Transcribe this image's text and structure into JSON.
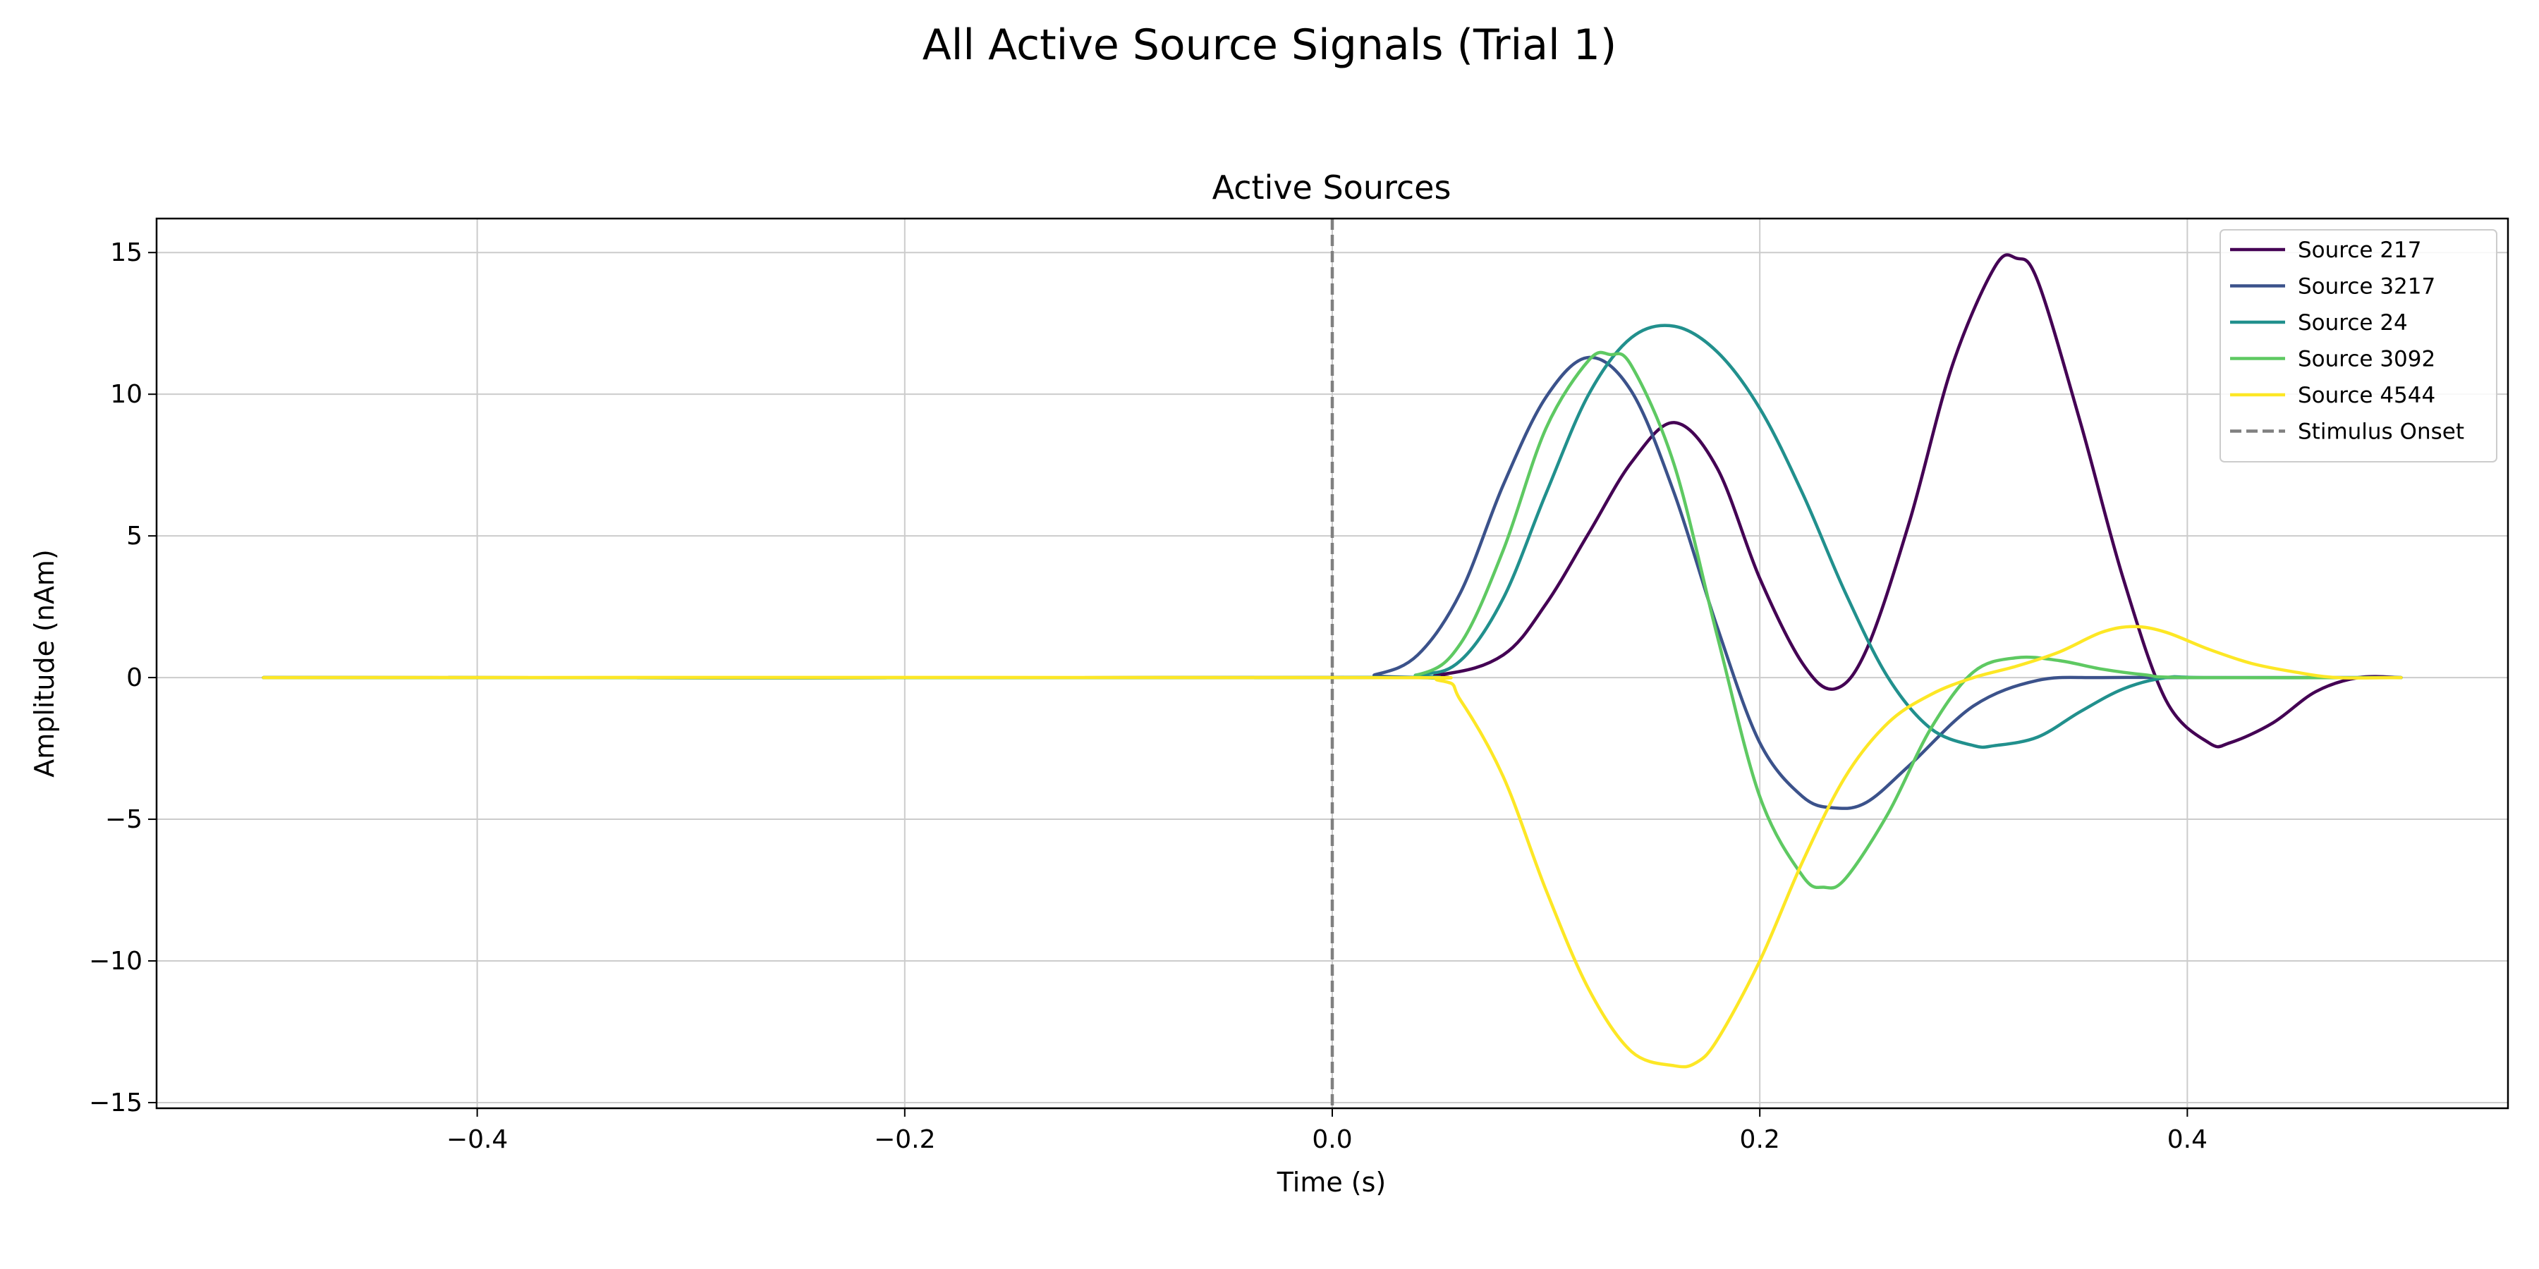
{
  "figure": {
    "suptitle": "All Active Source Signals (Trial 1)"
  },
  "chart_data": {
    "type": "line",
    "title": "Active Sources",
    "xlabel": "Time (s)",
    "ylabel": "Amplitude (nAm)",
    "xlim": [
      -0.55,
      0.55
    ],
    "ylim": [
      -15.2,
      16.2
    ],
    "xticks": [
      -0.4,
      -0.2,
      0.0,
      0.2,
      0.4
    ],
    "xtick_labels": [
      "−0.4",
      "−0.2",
      "0.0",
      "0.2",
      "0.4"
    ],
    "yticks": [
      -15,
      -10,
      -5,
      0,
      5,
      10,
      15
    ],
    "ytick_labels": [
      "−15",
      "−10",
      "−5",
      "0",
      "5",
      "10",
      "15"
    ],
    "grid": true,
    "legend_position": "top-right",
    "series": [
      {
        "name": "Source 217",
        "color": "#440154",
        "x": [
          -0.5,
          0.0,
          0.05,
          0.08,
          0.1,
          0.12,
          0.14,
          0.16,
          0.18,
          0.2,
          0.22,
          0.235,
          0.25,
          0.27,
          0.29,
          0.31,
          0.32,
          0.33,
          0.35,
          0.37,
          0.39,
          0.41,
          0.42,
          0.44,
          0.46,
          0.48,
          0.5
        ],
        "y": [
          0,
          0,
          0.1,
          0.8,
          2.6,
          5.1,
          7.6,
          9.0,
          7.4,
          3.5,
          0.5,
          -0.4,
          1.0,
          5.5,
          11.0,
          14.5,
          14.8,
          14.0,
          9.0,
          3.5,
          -0.8,
          -2.3,
          -2.3,
          -1.6,
          -0.5,
          0,
          0
        ]
      },
      {
        "name": "Source 3217",
        "color": "#3b528b",
        "x": [
          -0.5,
          0.0,
          0.02,
          0.04,
          0.06,
          0.08,
          0.1,
          0.12,
          0.14,
          0.16,
          0.18,
          0.2,
          0.22,
          0.235,
          0.25,
          0.27,
          0.3,
          0.33,
          0.36,
          0.4,
          0.5
        ],
        "y": [
          0,
          0,
          0.1,
          0.8,
          3.0,
          6.8,
          9.9,
          11.3,
          10.1,
          6.5,
          1.8,
          -2.3,
          -4.2,
          -4.6,
          -4.4,
          -3.1,
          -1.0,
          -0.1,
          0,
          0,
          0
        ]
      },
      {
        "name": "Source 24",
        "color": "#21908d",
        "x": [
          -0.5,
          0.0,
          0.04,
          0.06,
          0.08,
          0.1,
          0.12,
          0.14,
          0.16,
          0.18,
          0.2,
          0.22,
          0.24,
          0.26,
          0.28,
          0.3,
          0.31,
          0.33,
          0.35,
          0.37,
          0.39,
          0.41,
          0.5
        ],
        "y": [
          0,
          0,
          0.1,
          0.6,
          2.8,
          6.5,
          10.0,
          12.0,
          12.4,
          11.5,
          9.5,
          6.5,
          3.0,
          0.0,
          -1.8,
          -2.4,
          -2.4,
          -2.1,
          -1.2,
          -0.4,
          0,
          0,
          0
        ]
      },
      {
        "name": "Source 3092",
        "color": "#5ec962",
        "x": [
          -0.5,
          0.0,
          0.04,
          0.06,
          0.08,
          0.1,
          0.12,
          0.13,
          0.14,
          0.16,
          0.18,
          0.2,
          0.22,
          0.23,
          0.24,
          0.26,
          0.28,
          0.3,
          0.32,
          0.34,
          0.36,
          0.38,
          0.4,
          0.5
        ],
        "y": [
          0,
          0,
          0.1,
          1.2,
          4.5,
          8.8,
          11.2,
          11.4,
          11.0,
          7.5,
          1.5,
          -4.2,
          -7.0,
          -7.4,
          -7.1,
          -4.8,
          -1.8,
          0.2,
          0.7,
          0.6,
          0.3,
          0.1,
          0,
          0
        ]
      },
      {
        "name": "Source 4544",
        "color": "#fde725",
        "x": [
          -0.5,
          0.0,
          0.05,
          0.06,
          0.08,
          0.1,
          0.12,
          0.14,
          0.16,
          0.17,
          0.18,
          0.2,
          0.22,
          0.24,
          0.26,
          0.28,
          0.3,
          0.32,
          0.34,
          0.36,
          0.375,
          0.39,
          0.41,
          0.43,
          0.45,
          0.47,
          0.5
        ],
        "y": [
          0,
          0,
          -0.1,
          -0.8,
          -3.5,
          -7.5,
          -11.0,
          -13.2,
          -13.7,
          -13.6,
          -12.8,
          -10.0,
          -6.5,
          -3.5,
          -1.6,
          -0.6,
          0.0,
          0.4,
          0.9,
          1.6,
          1.8,
          1.6,
          1.0,
          0.5,
          0.2,
          0,
          0
        ]
      },
      {
        "name": "Stimulus Onset",
        "color": "#808080",
        "style": "dashed",
        "x": [
          0.0,
          0.0
        ],
        "y": [
          -15.2,
          16.2
        ]
      }
    ]
  }
}
